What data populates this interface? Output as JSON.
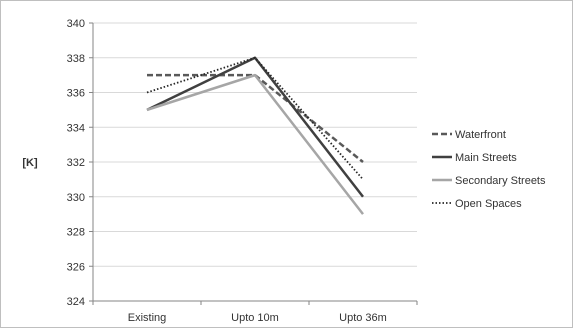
{
  "chart_data": {
    "type": "line",
    "title": "",
    "xlabel": "",
    "ylabel": "[K]",
    "categories": [
      "Existing",
      "Upto 10m",
      "Upto 36m"
    ],
    "ylim": [
      324,
      340
    ],
    "yticks": [
      324,
      326,
      328,
      330,
      332,
      334,
      336,
      338,
      340
    ],
    "grid": "horizontal",
    "legend_position": "right",
    "series": [
      {
        "name": "Waterfront",
        "values": [
          337,
          337,
          332
        ],
        "color": "#595959",
        "style": "dashed"
      },
      {
        "name": "Main Streets",
        "values": [
          335,
          338,
          330
        ],
        "color": "#404040",
        "style": "solid"
      },
      {
        "name": "Secondary Streets",
        "values": [
          335,
          337,
          329
        ],
        "color": "#a6a6a6",
        "style": "solid"
      },
      {
        "name": "Open Spaces",
        "values": [
          336,
          338,
          331
        ],
        "color": "#262626",
        "style": "dotted"
      }
    ]
  }
}
